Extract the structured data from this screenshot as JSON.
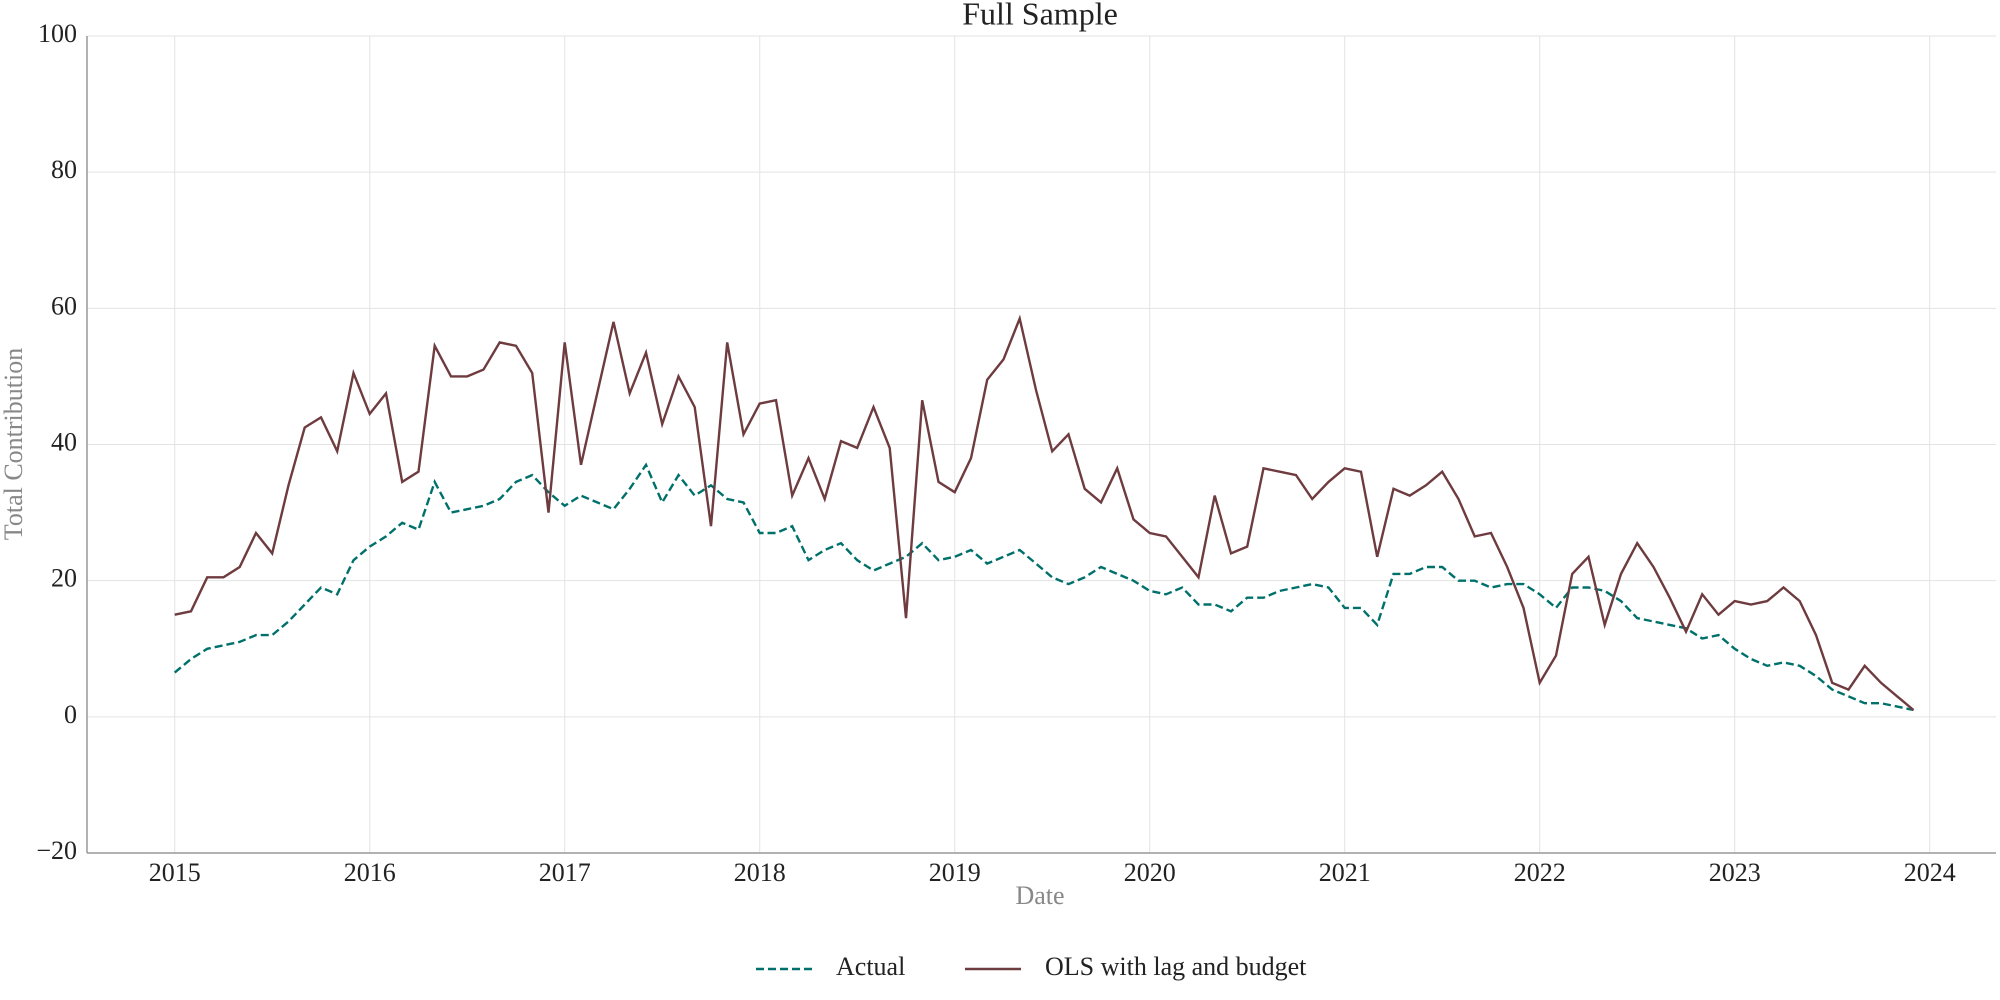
{
  "chart_data": {
    "type": "line",
    "title": "Full Sample",
    "xlabel": "Date",
    "ylabel": "Total Contribution",
    "x": [
      "2015-01",
      "2015-02",
      "2015-03",
      "2015-04",
      "2015-05",
      "2015-06",
      "2015-07",
      "2015-08",
      "2015-09",
      "2015-10",
      "2015-11",
      "2015-12",
      "2016-01",
      "2016-02",
      "2016-03",
      "2016-04",
      "2016-05",
      "2016-06",
      "2016-07",
      "2016-08",
      "2016-09",
      "2016-10",
      "2016-11",
      "2016-12",
      "2017-01",
      "2017-02",
      "2017-03",
      "2017-04",
      "2017-05",
      "2017-06",
      "2017-07",
      "2017-08",
      "2017-09",
      "2017-10",
      "2017-11",
      "2017-12",
      "2018-01",
      "2018-02",
      "2018-03",
      "2018-04",
      "2018-05",
      "2018-06",
      "2018-07",
      "2018-08",
      "2018-09",
      "2018-10",
      "2018-11",
      "2018-12",
      "2019-01",
      "2019-02",
      "2019-03",
      "2019-04",
      "2019-05",
      "2019-06",
      "2019-07",
      "2019-08",
      "2019-09",
      "2019-10",
      "2019-11",
      "2019-12",
      "2020-01",
      "2020-02",
      "2020-03",
      "2020-04",
      "2020-05",
      "2020-06",
      "2020-07",
      "2020-08",
      "2020-09",
      "2020-10",
      "2020-11",
      "2020-12",
      "2021-01",
      "2021-02",
      "2021-03",
      "2021-04",
      "2021-05",
      "2021-06",
      "2021-07",
      "2021-08",
      "2021-09",
      "2021-10",
      "2021-11",
      "2021-12",
      "2022-01",
      "2022-02",
      "2022-03",
      "2022-04",
      "2022-05",
      "2022-06",
      "2022-07",
      "2022-08",
      "2022-09",
      "2022-10",
      "2022-11",
      "2022-12",
      "2023-01",
      "2023-02",
      "2023-03",
      "2023-04",
      "2023-05",
      "2023-06",
      "2023-07",
      "2023-08",
      "2023-09",
      "2023-10",
      "2023-11",
      "2023-12"
    ],
    "series": [
      {
        "name": "Actual",
        "color": "#00706b",
        "dashed": true,
        "values": [
          6.5,
          8.5,
          10,
          10.5,
          11,
          12,
          12,
          14,
          16.5,
          19,
          18,
          23,
          25,
          26.5,
          28.5,
          27.5,
          34.5,
          30,
          30.5,
          31,
          32,
          34.5,
          35.5,
          33,
          31,
          32.5,
          31.5,
          30.5,
          33.5,
          37,
          31.5,
          35.5,
          32.5,
          34,
          32,
          31.5,
          27,
          27,
          28,
          23,
          24.5,
          25.5,
          23,
          21.5,
          22.5,
          23.5,
          25.5,
          23,
          23.5,
          24.5,
          22.5,
          23.5,
          24.5,
          22.5,
          20.5,
          19.5,
          20.5,
          22,
          21,
          20,
          18.5,
          18,
          19,
          16.5,
          16.5,
          15.5,
          17.5,
          17.5,
          18.5,
          19,
          19.5,
          19,
          16,
          16,
          13.5,
          21,
          21,
          22,
          22,
          20,
          20,
          19,
          19.5,
          19.5,
          18,
          16,
          19,
          19,
          18.5,
          17,
          14.5,
          14,
          13.5,
          13,
          11.5,
          12,
          10,
          8.5,
          7.5,
          8,
          7.5,
          6,
          4,
          3,
          2,
          2,
          1.5,
          1
        ]
      },
      {
        "name": "OLS with lag and budget",
        "color": "#6e3b3f",
        "dashed": false,
        "values": [
          15,
          15.5,
          20.5,
          20.5,
          22,
          27,
          24,
          34,
          42.5,
          44,
          39,
          50.5,
          44.5,
          47.5,
          34.5,
          36,
          54.5,
          50,
          50,
          51,
          55,
          54.5,
          50.5,
          30,
          55,
          37,
          47.5,
          58,
          47.5,
          53.5,
          43,
          50,
          45.5,
          28,
          55,
          41.5,
          46,
          46.5,
          32.5,
          38,
          32,
          40.5,
          39.5,
          45.5,
          39.5,
          14.5,
          46.5,
          34.5,
          33,
          38,
          49.5,
          52.5,
          58.5,
          48,
          39,
          41.5,
          33.5,
          31.5,
          36.5,
          29,
          27,
          26.5,
          23.5,
          20.5,
          32.5,
          24,
          25,
          36.5,
          36,
          35.5,
          32,
          34.5,
          36.5,
          36,
          23.5,
          33.5,
          32.5,
          34,
          36,
          32,
          26.5,
          27,
          22,
          16,
          5,
          9,
          21,
          23.5,
          13.5,
          21,
          25.5,
          22,
          17.5,
          12.5,
          18,
          15,
          17,
          16.5,
          17,
          19,
          17,
          12,
          5,
          4,
          7.5,
          5,
          3,
          1
        ]
      }
    ],
    "xlim": [
      2014.55,
      2024.34
    ],
    "xticks": [
      2015,
      2016,
      2017,
      2018,
      2019,
      2020,
      2021,
      2022,
      2023,
      2024
    ],
    "ylim": [
      -20,
      100
    ],
    "yticks": [
      {
        "value": -20,
        "label": "−20"
      },
      0,
      20,
      40,
      60,
      80,
      100
    ],
    "grid": true,
    "legend": "bottom"
  }
}
